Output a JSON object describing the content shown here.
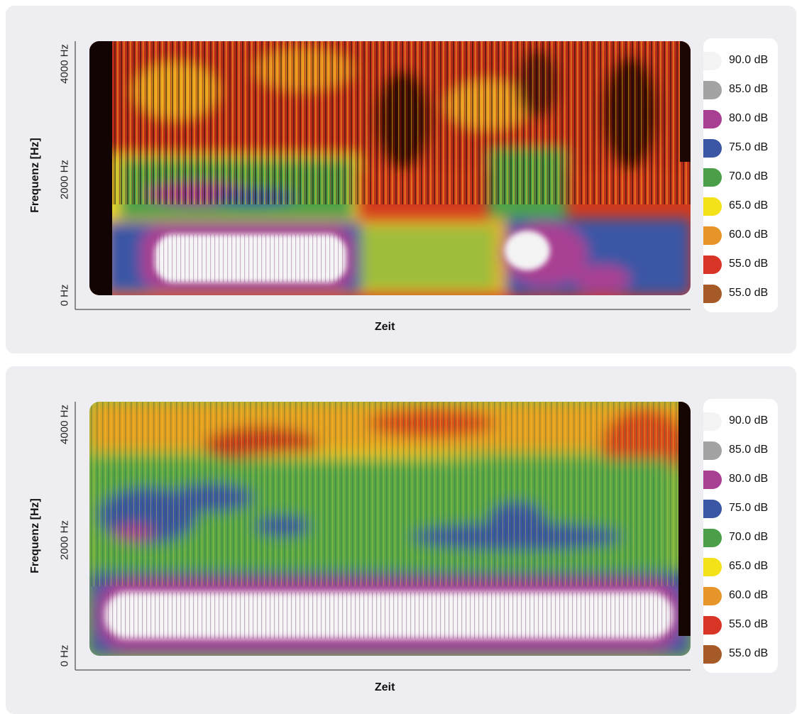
{
  "chart_data": [
    {
      "type": "heatmap",
      "xlabel": "Zeit",
      "ylabel": "Frequenz [Hz]",
      "yticks": [
        "0 Hz",
        "2000 Hz",
        "4000 Hz"
      ],
      "ylim": [
        0,
        4000
      ],
      "legend": [
        {
          "label": "90.0 dB",
          "color": "#f4f4f4"
        },
        {
          "label": "85.0 dB",
          "color": "#a3a3a3"
        },
        {
          "label": "80.0 dB",
          "color": "#a93f93"
        },
        {
          "label": "75.0 dB",
          "color": "#3a56a5"
        },
        {
          "label": "70.0 dB",
          "color": "#4b9f49"
        },
        {
          "label": "65.0 dB",
          "color": "#f3e21a"
        },
        {
          "label": "60.0 dB",
          "color": "#e6952b"
        },
        {
          "label": "55.0 dB",
          "color": "#d83526"
        },
        {
          "label": "55.0 dB",
          "color": "#a65a27"
        }
      ]
    },
    {
      "type": "heatmap",
      "xlabel": "Zeit",
      "ylabel": "Frequenz [Hz]",
      "yticks": [
        "0 Hz",
        "2000 Hz",
        "4000 Hz"
      ],
      "ylim": [
        0,
        4000
      ],
      "legend": [
        {
          "label": "90.0 dB",
          "color": "#f4f4f4"
        },
        {
          "label": "85.0 dB",
          "color": "#a3a3a3"
        },
        {
          "label": "80.0 dB",
          "color": "#a93f93"
        },
        {
          "label": "75.0 dB",
          "color": "#3a56a5"
        },
        {
          "label": "70.0 dB",
          "color": "#4b9f49"
        },
        {
          "label": "65.0 dB",
          "color": "#f3e21a"
        },
        {
          "label": "60.0 dB",
          "color": "#e6952b"
        },
        {
          "label": "55.0 dB",
          "color": "#d83526"
        },
        {
          "label": "55.0 dB",
          "color": "#a65a27"
        }
      ]
    }
  ]
}
